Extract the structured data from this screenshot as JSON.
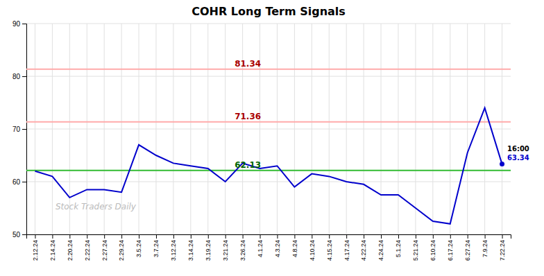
{
  "chart_data": {
    "type": "line",
    "title": "COHR Long Term Signals",
    "categories": [
      "2.12.24",
      "2.14.24",
      "2.20.24",
      "2.22.24",
      "2.27.24",
      "2.29.24",
      "3.5.24",
      "3.7.24",
      "3.12.24",
      "3.14.24",
      "3.19.24",
      "3.21.24",
      "3.26.24",
      "4.1.24",
      "4.3.24",
      "4.8.24",
      "4.10.24",
      "4.15.24",
      "4.17.24",
      "4.22.24",
      "4.24.24",
      "5.1.24",
      "5.21.24",
      "6.10.24",
      "6.17.24",
      "6.27.24",
      "7.9.24",
      "7.22.24"
    ],
    "values": [
      62.0,
      61.0,
      57.0,
      58.5,
      58.5,
      58.0,
      67.0,
      65.0,
      63.5,
      63.0,
      62.5,
      60.0,
      63.5,
      62.5,
      63.0,
      59.0,
      61.5,
      61.0,
      60.0,
      59.5,
      57.5,
      57.5,
      55.0,
      52.5,
      52.0,
      65.5,
      74.0,
      63.34
    ],
    "value_labels": [
      null,
      null,
      null,
      null,
      null,
      null,
      null,
      null,
      null,
      null,
      null,
      null,
      null,
      null,
      null,
      null,
      null,
      null,
      null,
      null,
      null,
      null,
      null,
      null,
      null,
      null,
      null,
      "63.34"
    ],
    "color": "#0000cc",
    "ylim": [
      50,
      90
    ],
    "yticks": [
      50,
      60,
      70,
      80,
      90
    ],
    "grid": true,
    "hlines": [
      {
        "value": 81.34,
        "label": "81.34",
        "color": "#ffaaaa",
        "label_color": "#aa0000"
      },
      {
        "value": 71.36,
        "label": "71.36",
        "color": "#ffaaaa",
        "label_color": "#aa0000"
      },
      {
        "value": 62.13,
        "label": "62.13",
        "color": "#33bb33",
        "label_color": "#006600"
      }
    ],
    "annotations": [
      "16:00"
    ],
    "watermark": "Stock Traders Daily"
  }
}
